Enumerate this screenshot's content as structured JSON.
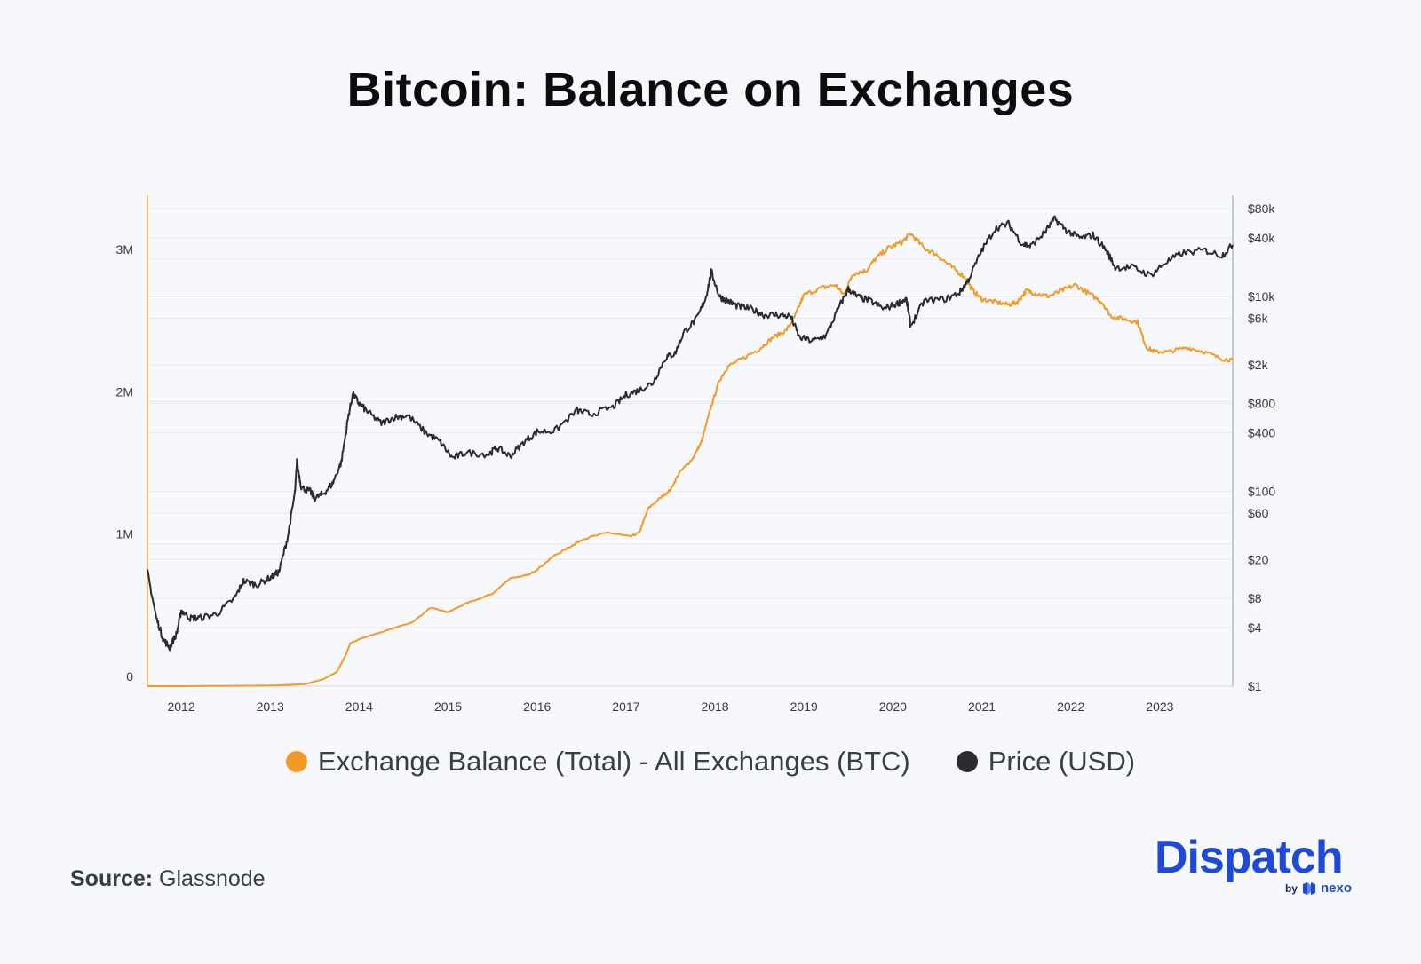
{
  "chart_data": {
    "type": "line",
    "title": "Bitcoin: Balance on Exchanges",
    "x_ticks": [
      "2012",
      "2013",
      "2014",
      "2015",
      "2016",
      "2017",
      "2018",
      "2019",
      "2020",
      "2021",
      "2022",
      "2023"
    ],
    "x_range": [
      2011.62,
      2023.82
    ],
    "y_left": {
      "ticks": [
        0,
        1000000,
        2000000,
        3000000
      ],
      "tick_labels": [
        "0",
        "1M",
        "2M",
        "3M"
      ],
      "range": [
        0,
        3450000
      ]
    },
    "y_right": {
      "scale": "log",
      "ticks": [
        1,
        4,
        8,
        20,
        60,
        100,
        400,
        800,
        2000,
        6000,
        10000,
        40000,
        80000
      ],
      "tick_labels": [
        "$1",
        "$4",
        "$8",
        "$20",
        "$60",
        "$100",
        "$400",
        "$800",
        "$2k",
        "$6k",
        "$10k",
        "$40k",
        "$80k"
      ],
      "range": [
        1,
        110000
      ]
    },
    "series": [
      {
        "name": "Exchange Balance (Total) - All Exchanges (BTC)",
        "color": "#f39a26",
        "axis": "left",
        "points": [
          [
            2011.62,
            0
          ],
          [
            2012.0,
            0
          ],
          [
            2012.5,
            2000
          ],
          [
            2013.0,
            4000
          ],
          [
            2013.2,
            8000
          ],
          [
            2013.4,
            15000
          ],
          [
            2013.6,
            50000
          ],
          [
            2013.75,
            100000
          ],
          [
            2013.85,
            220000
          ],
          [
            2013.9,
            300000
          ],
          [
            2014.0,
            330000
          ],
          [
            2014.3,
            390000
          ],
          [
            2014.6,
            450000
          ],
          [
            2014.8,
            550000
          ],
          [
            2015.0,
            520000
          ],
          [
            2015.2,
            580000
          ],
          [
            2015.5,
            650000
          ],
          [
            2015.7,
            760000
          ],
          [
            2015.9,
            780000
          ],
          [
            2016.0,
            820000
          ],
          [
            2016.2,
            920000
          ],
          [
            2016.4,
            990000
          ],
          [
            2016.5,
            1030000
          ],
          [
            2016.8,
            1080000
          ],
          [
            2017.05,
            1050000
          ],
          [
            2017.15,
            1080000
          ],
          [
            2017.25,
            1250000
          ],
          [
            2017.4,
            1330000
          ],
          [
            2017.5,
            1380000
          ],
          [
            2017.6,
            1500000
          ],
          [
            2017.75,
            1600000
          ],
          [
            2017.85,
            1720000
          ],
          [
            2017.95,
            1950000
          ],
          [
            2018.05,
            2150000
          ],
          [
            2018.15,
            2250000
          ],
          [
            2018.3,
            2300000
          ],
          [
            2018.5,
            2370000
          ],
          [
            2018.65,
            2450000
          ],
          [
            2018.8,
            2500000
          ],
          [
            2018.9,
            2600000
          ],
          [
            2019.0,
            2750000
          ],
          [
            2019.2,
            2800000
          ],
          [
            2019.35,
            2820000
          ],
          [
            2019.45,
            2750000
          ],
          [
            2019.55,
            2900000
          ],
          [
            2019.7,
            2920000
          ],
          [
            2019.8,
            3000000
          ],
          [
            2019.95,
            3080000
          ],
          [
            2020.1,
            3120000
          ],
          [
            2020.2,
            3180000
          ],
          [
            2020.35,
            3080000
          ],
          [
            2020.5,
            3030000
          ],
          [
            2020.65,
            2950000
          ],
          [
            2020.8,
            2880000
          ],
          [
            2020.9,
            2780000
          ],
          [
            2021.0,
            2720000
          ],
          [
            2021.15,
            2700000
          ],
          [
            2021.3,
            2680000
          ],
          [
            2021.4,
            2700000
          ],
          [
            2021.5,
            2780000
          ],
          [
            2021.6,
            2760000
          ],
          [
            2021.75,
            2740000
          ],
          [
            2021.9,
            2780000
          ],
          [
            2022.05,
            2820000
          ],
          [
            2022.2,
            2760000
          ],
          [
            2022.35,
            2700000
          ],
          [
            2022.45,
            2600000
          ],
          [
            2022.6,
            2580000
          ],
          [
            2022.75,
            2560000
          ],
          [
            2022.85,
            2380000
          ],
          [
            2022.95,
            2350000
          ],
          [
            2023.1,
            2350000
          ],
          [
            2023.3,
            2380000
          ],
          [
            2023.5,
            2350000
          ],
          [
            2023.7,
            2300000
          ],
          [
            2023.82,
            2290000
          ]
        ]
      },
      {
        "name": "Price (USD)",
        "color": "#2a2c30",
        "axis": "right",
        "points": [
          [
            2011.62,
            15
          ],
          [
            2011.72,
            5
          ],
          [
            2011.8,
            3
          ],
          [
            2011.87,
            2.5
          ],
          [
            2011.95,
            3.5
          ],
          [
            2012.0,
            6
          ],
          [
            2012.1,
            5
          ],
          [
            2012.2,
            5
          ],
          [
            2012.4,
            5.5
          ],
          [
            2012.6,
            8
          ],
          [
            2012.7,
            12
          ],
          [
            2012.85,
            11
          ],
          [
            2013.0,
            13
          ],
          [
            2013.1,
            15
          ],
          [
            2013.2,
            35
          ],
          [
            2013.28,
            100
          ],
          [
            2013.3,
            200
          ],
          [
            2013.35,
            110
          ],
          [
            2013.45,
            100
          ],
          [
            2013.5,
            85
          ],
          [
            2013.6,
            95
          ],
          [
            2013.7,
            120
          ],
          [
            2013.8,
            200
          ],
          [
            2013.88,
            600
          ],
          [
            2013.93,
            1000
          ],
          [
            2014.0,
            800
          ],
          [
            2014.1,
            650
          ],
          [
            2014.25,
            500
          ],
          [
            2014.4,
            580
          ],
          [
            2014.55,
            600
          ],
          [
            2014.75,
            400
          ],
          [
            2014.9,
            330
          ],
          [
            2015.05,
            220
          ],
          [
            2015.2,
            250
          ],
          [
            2015.45,
            240
          ],
          [
            2015.55,
            280
          ],
          [
            2015.7,
            230
          ],
          [
            2015.85,
            320
          ],
          [
            2016.0,
            410
          ],
          [
            2016.2,
            420
          ],
          [
            2016.45,
            680
          ],
          [
            2016.6,
            620
          ],
          [
            2016.85,
            730
          ],
          [
            2017.0,
            980
          ],
          [
            2017.15,
            1100
          ],
          [
            2017.3,
            1300
          ],
          [
            2017.45,
            2400
          ],
          [
            2017.55,
            2600
          ],
          [
            2017.65,
            4300
          ],
          [
            2017.8,
            6000
          ],
          [
            2017.9,
            10000
          ],
          [
            2017.96,
            18000
          ],
          [
            2018.05,
            10000
          ],
          [
            2018.15,
            9000
          ],
          [
            2018.25,
            8000
          ],
          [
            2018.4,
            7500
          ],
          [
            2018.55,
            6500
          ],
          [
            2018.7,
            6500
          ],
          [
            2018.85,
            6300
          ],
          [
            2018.95,
            3800
          ],
          [
            2019.1,
            3500
          ],
          [
            2019.25,
            4000
          ],
          [
            2019.4,
            8000
          ],
          [
            2019.5,
            12000
          ],
          [
            2019.6,
            10000
          ],
          [
            2019.75,
            9000
          ],
          [
            2019.9,
            7500
          ],
          [
            2020.05,
            8500
          ],
          [
            2020.15,
            9500
          ],
          [
            2020.2,
            5000
          ],
          [
            2020.35,
            9000
          ],
          [
            2020.6,
            9500
          ],
          [
            2020.75,
            11000
          ],
          [
            2020.85,
            15000
          ],
          [
            2021.0,
            30000
          ],
          [
            2021.15,
            50000
          ],
          [
            2021.3,
            56000
          ],
          [
            2021.45,
            35000
          ],
          [
            2021.55,
            33000
          ],
          [
            2021.7,
            45000
          ],
          [
            2021.82,
            63000
          ],
          [
            2021.95,
            48000
          ],
          [
            2022.1,
            40000
          ],
          [
            2022.25,
            43000
          ],
          [
            2022.4,
            30000
          ],
          [
            2022.5,
            20000
          ],
          [
            2022.7,
            20000
          ],
          [
            2022.9,
            16500
          ],
          [
            2023.05,
            22000
          ],
          [
            2023.25,
            28000
          ],
          [
            2023.5,
            30000
          ],
          [
            2023.7,
            26500
          ],
          [
            2023.82,
            34000
          ]
        ]
      }
    ]
  },
  "legend": {
    "items": [
      {
        "label": "Exchange Balance (Total) - All Exchanges (BTC)",
        "color": "#f39a26"
      },
      {
        "label": "Price (USD)",
        "color": "#2a2c30"
      }
    ]
  },
  "footer": {
    "source_label": "Source:",
    "source_value": "Glassnode"
  },
  "logo": {
    "word": "Dispatch",
    "by": "by",
    "partner": "nexo",
    "color": "#1f49d8"
  }
}
